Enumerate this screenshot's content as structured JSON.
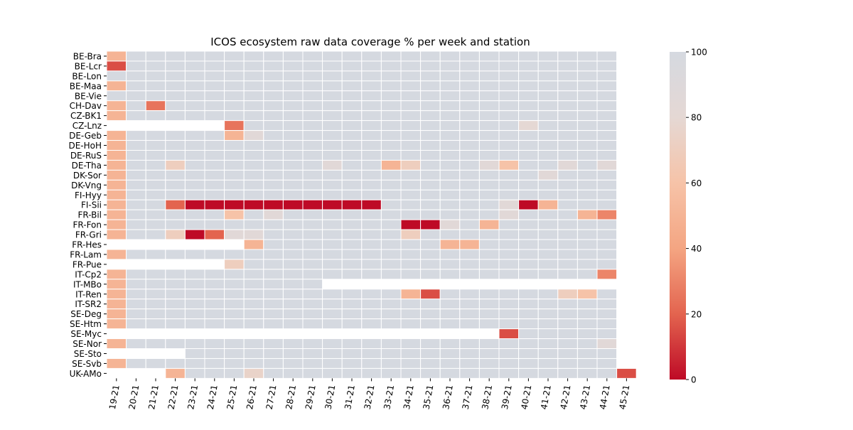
{
  "chart_data": {
    "type": "heatmap",
    "title": "ICOS ecosystem raw data coverage % per week and station",
    "xlabel": "",
    "ylabel": "",
    "colorbar": {
      "min": 0,
      "max": 100,
      "ticks": [
        0,
        20,
        40,
        60,
        80,
        100
      ],
      "colormap": "RdBu-like: red at 0, light grey at 100",
      "stops": [
        "#be0a26",
        "#e3644f",
        "#f4a582",
        "#f6c3a8",
        "#e5d8d4",
        "#d5d9e0"
      ]
    },
    "columns": [
      "19-21",
      "20-21",
      "21-21",
      "22-21",
      "23-21",
      "24-21",
      "25-21",
      "26-21",
      "27-21",
      "28-21",
      "29-21",
      "30-21",
      "31-21",
      "32-21",
      "33-21",
      "34-21",
      "35-21",
      "36-21",
      "37-21",
      "38-21",
      "39-21",
      "40-21",
      "41-21",
      "42-21",
      "43-21",
      "44-21",
      "45-21"
    ],
    "rows": [
      "BE-Bra",
      "BE-Lcr",
      "BE-Lon",
      "BE-Maa",
      "BE-Vie",
      "CH-Dav",
      "CZ-BK1",
      "CZ-Lnz",
      "DE-Geb",
      "DE-HoH",
      "DE-RuS",
      "DE-Tha",
      "DK-Sor",
      "DK-Vng",
      "FI-Hyy",
      "FI-Sii",
      "FR-Bil",
      "FR-Fon",
      "FR-Gri",
      "FR-Hes",
      "FR-Lam",
      "FR-Pue",
      "IT-Cp2",
      "IT-MBo",
      "IT-Ren",
      "IT-SR2",
      "SE-Deg",
      "SE-Htm",
      "SE-Myc",
      "SE-Nor",
      "SE-Sto",
      "SE-Svb",
      "UK-AMo"
    ],
    "values": [
      [
        50,
        100,
        100,
        100,
        100,
        100,
        100,
        100,
        100,
        100,
        100,
        100,
        100,
        100,
        100,
        100,
        100,
        100,
        100,
        100,
        100,
        100,
        100,
        100,
        100,
        100,
        null
      ],
      [
        15,
        100,
        100,
        100,
        100,
        100,
        100,
        100,
        100,
        100,
        100,
        100,
        100,
        100,
        100,
        100,
        100,
        100,
        100,
        100,
        100,
        100,
        100,
        100,
        100,
        100,
        null
      ],
      [
        100,
        100,
        100,
        100,
        100,
        100,
        100,
        100,
        100,
        100,
        100,
        100,
        100,
        100,
        100,
        100,
        100,
        100,
        100,
        100,
        100,
        100,
        100,
        100,
        100,
        100,
        null
      ],
      [
        50,
        100,
        100,
        100,
        100,
        100,
        100,
        100,
        100,
        100,
        100,
        100,
        100,
        100,
        100,
        100,
        100,
        100,
        100,
        100,
        100,
        100,
        100,
        100,
        100,
        100,
        null
      ],
      [
        100,
        100,
        100,
        100,
        100,
        100,
        100,
        100,
        100,
        100,
        100,
        100,
        100,
        100,
        100,
        100,
        100,
        100,
        100,
        100,
        100,
        100,
        100,
        100,
        100,
        100,
        null
      ],
      [
        50,
        100,
        25,
        100,
        100,
        100,
        100,
        100,
        100,
        100,
        100,
        100,
        100,
        100,
        100,
        100,
        100,
        100,
        100,
        100,
        100,
        100,
        100,
        100,
        100,
        100,
        null
      ],
      [
        50,
        100,
        100,
        100,
        100,
        100,
        100,
        100,
        100,
        100,
        100,
        100,
        100,
        100,
        100,
        100,
        100,
        100,
        100,
        100,
        100,
        100,
        100,
        100,
        100,
        100,
        null
      ],
      [
        null,
        null,
        null,
        null,
        null,
        null,
        25,
        100,
        100,
        100,
        100,
        100,
        100,
        100,
        100,
        100,
        100,
        100,
        100,
        100,
        100,
        80,
        100,
        100,
        100,
        100,
        null
      ],
      [
        50,
        100,
        100,
        100,
        100,
        100,
        50,
        85,
        100,
        100,
        100,
        100,
        100,
        100,
        100,
        100,
        100,
        100,
        100,
        100,
        100,
        100,
        100,
        100,
        100,
        100,
        null
      ],
      [
        50,
        100,
        100,
        100,
        100,
        100,
        100,
        100,
        100,
        100,
        100,
        100,
        100,
        100,
        100,
        100,
        100,
        100,
        100,
        100,
        100,
        100,
        100,
        100,
        100,
        100,
        null
      ],
      [
        50,
        100,
        100,
        100,
        100,
        100,
        100,
        100,
        100,
        100,
        100,
        100,
        100,
        100,
        100,
        100,
        100,
        100,
        100,
        100,
        100,
        100,
        100,
        100,
        100,
        100,
        null
      ],
      [
        50,
        100,
        100,
        70,
        100,
        100,
        100,
        100,
        100,
        100,
        100,
        85,
        100,
        100,
        50,
        70,
        100,
        100,
        100,
        85,
        60,
        100,
        100,
        85,
        100,
        85,
        null
      ],
      [
        50,
        100,
        100,
        100,
        100,
        100,
        100,
        100,
        100,
        100,
        100,
        100,
        100,
        100,
        100,
        100,
        100,
        100,
        100,
        100,
        100,
        100,
        85,
        100,
        100,
        100,
        null
      ],
      [
        50,
        100,
        100,
        100,
        100,
        100,
        100,
        100,
        100,
        100,
        100,
        100,
        100,
        100,
        100,
        100,
        100,
        100,
        100,
        100,
        100,
        100,
        100,
        100,
        100,
        100,
        null
      ],
      [
        50,
        100,
        100,
        100,
        100,
        100,
        100,
        100,
        100,
        100,
        100,
        100,
        100,
        100,
        100,
        100,
        100,
        100,
        100,
        100,
        100,
        100,
        100,
        100,
        100,
        100,
        null
      ],
      [
        50,
        100,
        100,
        20,
        0,
        0,
        0,
        0,
        0,
        0,
        0,
        0,
        0,
        0,
        100,
        100,
        100,
        100,
        100,
        100,
        85,
        0,
        50,
        100,
        100,
        100,
        null
      ],
      [
        50,
        100,
        100,
        100,
        100,
        100,
        60,
        100,
        85,
        100,
        100,
        100,
        100,
        100,
        100,
        100,
        100,
        100,
        100,
        100,
        85,
        100,
        100,
        100,
        50,
        30,
        null
      ],
      [
        50,
        100,
        100,
        100,
        100,
        100,
        100,
        100,
        100,
        100,
        100,
        100,
        100,
        100,
        100,
        0,
        0,
        85,
        100,
        50,
        100,
        100,
        100,
        100,
        100,
        100,
        null
      ],
      [
        50,
        100,
        100,
        70,
        0,
        20,
        85,
        85,
        100,
        100,
        100,
        100,
        100,
        100,
        100,
        70,
        100,
        100,
        100,
        100,
        100,
        100,
        100,
        100,
        100,
        100,
        null
      ],
      [
        null,
        null,
        null,
        null,
        null,
        null,
        null,
        50,
        100,
        100,
        100,
        100,
        100,
        100,
        100,
        100,
        100,
        50,
        50,
        100,
        100,
        100,
        100,
        100,
        100,
        100,
        null
      ],
      [
        50,
        100,
        100,
        100,
        100,
        100,
        100,
        100,
        100,
        100,
        100,
        100,
        100,
        100,
        100,
        100,
        100,
        100,
        100,
        100,
        100,
        100,
        100,
        100,
        100,
        100,
        null
      ],
      [
        null,
        null,
        null,
        null,
        null,
        null,
        70,
        100,
        100,
        100,
        100,
        100,
        100,
        100,
        100,
        100,
        100,
        100,
        100,
        100,
        100,
        100,
        100,
        100,
        100,
        100,
        null
      ],
      [
        50,
        100,
        100,
        100,
        100,
        100,
        100,
        100,
        100,
        100,
        100,
        100,
        100,
        100,
        100,
        100,
        100,
        100,
        100,
        100,
        100,
        100,
        100,
        100,
        100,
        30,
        null
      ],
      [
        50,
        100,
        100,
        100,
        100,
        100,
        100,
        100,
        100,
        100,
        100,
        null,
        null,
        null,
        null,
        null,
        null,
        null,
        null,
        null,
        null,
        null,
        null,
        null,
        null,
        null,
        null
      ],
      [
        50,
        100,
        100,
        100,
        100,
        100,
        100,
        100,
        100,
        100,
        100,
        100,
        100,
        100,
        100,
        50,
        15,
        100,
        100,
        100,
        100,
        100,
        100,
        70,
        60,
        100,
        null
      ],
      [
        50,
        100,
        100,
        100,
        100,
        100,
        100,
        100,
        100,
        100,
        100,
        100,
        100,
        100,
        100,
        100,
        100,
        100,
        100,
        100,
        100,
        100,
        100,
        100,
        100,
        100,
        null
      ],
      [
        50,
        100,
        100,
        100,
        100,
        100,
        100,
        100,
        100,
        100,
        100,
        100,
        100,
        100,
        100,
        100,
        100,
        100,
        100,
        100,
        100,
        100,
        100,
        100,
        100,
        100,
        null
      ],
      [
        50,
        100,
        100,
        100,
        100,
        100,
        100,
        100,
        100,
        100,
        100,
        100,
        100,
        100,
        100,
        100,
        100,
        100,
        100,
        100,
        100,
        100,
        100,
        100,
        100,
        100,
        null
      ],
      [
        null,
        null,
        null,
        null,
        null,
        null,
        null,
        null,
        null,
        null,
        null,
        null,
        null,
        null,
        null,
        null,
        null,
        null,
        null,
        null,
        15,
        100,
        100,
        100,
        100,
        100,
        null
      ],
      [
        50,
        100,
        100,
        100,
        100,
        100,
        100,
        100,
        100,
        100,
        100,
        100,
        100,
        100,
        100,
        100,
        100,
        100,
        100,
        100,
        100,
        100,
        100,
        100,
        100,
        85,
        null
      ],
      [
        null,
        null,
        null,
        null,
        100,
        100,
        100,
        100,
        100,
        100,
        100,
        100,
        100,
        100,
        100,
        100,
        100,
        100,
        100,
        100,
        100,
        100,
        100,
        100,
        100,
        100,
        null
      ],
      [
        50,
        100,
        100,
        100,
        100,
        100,
        100,
        100,
        100,
        100,
        100,
        100,
        100,
        100,
        100,
        100,
        100,
        100,
        100,
        100,
        100,
        100,
        100,
        100,
        100,
        100,
        null
      ],
      [
        null,
        null,
        null,
        50,
        100,
        100,
        100,
        75,
        100,
        100,
        100,
        100,
        100,
        100,
        100,
        100,
        100,
        100,
        100,
        100,
        100,
        100,
        100,
        100,
        100,
        100,
        15
      ]
    ]
  }
}
